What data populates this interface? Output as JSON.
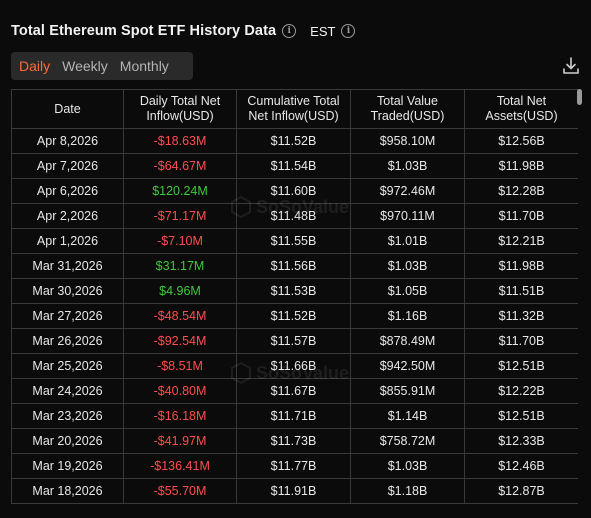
{
  "header": {
    "title": "Total Ethereum Spot ETF History Data",
    "timezone": "EST"
  },
  "tabs": [
    {
      "label": "Daily",
      "active": true
    },
    {
      "label": "Weekly",
      "active": false
    },
    {
      "label": "Monthly",
      "active": false
    }
  ],
  "watermark": "SoSoValue",
  "table": {
    "columns": [
      "Date",
      "Daily Total Net Inflow(USD)",
      "Cumulative Total Net Inflow(USD)",
      "Total Value Traded(USD)",
      "Total Net Assets(USD)"
    ],
    "rows": [
      {
        "date": "Apr 8,2026",
        "inflow": "-$18.63M",
        "cumulative": "$11.52B",
        "traded": "$958.10M",
        "assets": "$12.56B"
      },
      {
        "date": "Apr 7,2026",
        "inflow": "-$64.67M",
        "cumulative": "$11.54B",
        "traded": "$1.03B",
        "assets": "$11.98B"
      },
      {
        "date": "Apr 6,2026",
        "inflow": "$120.24M",
        "cumulative": "$11.60B",
        "traded": "$972.46M",
        "assets": "$12.28B"
      },
      {
        "date": "Apr 2,2026",
        "inflow": "-$71.17M",
        "cumulative": "$11.48B",
        "traded": "$970.11M",
        "assets": "$11.70B"
      },
      {
        "date": "Apr 1,2026",
        "inflow": "-$7.10M",
        "cumulative": "$11.55B",
        "traded": "$1.01B",
        "assets": "$12.21B"
      },
      {
        "date": "Mar 31,2026",
        "inflow": "$31.17M",
        "cumulative": "$11.56B",
        "traded": "$1.03B",
        "assets": "$11.98B"
      },
      {
        "date": "Mar 30,2026",
        "inflow": "$4.96M",
        "cumulative": "$11.53B",
        "traded": "$1.05B",
        "assets": "$11.51B"
      },
      {
        "date": "Mar 27,2026",
        "inflow": "-$48.54M",
        "cumulative": "$11.52B",
        "traded": "$1.16B",
        "assets": "$11.32B"
      },
      {
        "date": "Mar 26,2026",
        "inflow": "-$92.54M",
        "cumulative": "$11.57B",
        "traded": "$878.49M",
        "assets": "$11.70B"
      },
      {
        "date": "Mar 25,2026",
        "inflow": "-$8.51M",
        "cumulative": "$11.66B",
        "traded": "$942.50M",
        "assets": "$12.51B"
      },
      {
        "date": "Mar 24,2026",
        "inflow": "-$40.80M",
        "cumulative": "$11.67B",
        "traded": "$855.91M",
        "assets": "$12.22B"
      },
      {
        "date": "Mar 23,2026",
        "inflow": "-$16.18M",
        "cumulative": "$11.71B",
        "traded": "$1.14B",
        "assets": "$12.51B"
      },
      {
        "date": "Mar 20,2026",
        "inflow": "-$41.97M",
        "cumulative": "$11.73B",
        "traded": "$758.72M",
        "assets": "$12.33B"
      },
      {
        "date": "Mar 19,2026",
        "inflow": "-$136.41M",
        "cumulative": "$11.77B",
        "traded": "$1.03B",
        "assets": "$12.46B"
      },
      {
        "date": "Mar 18,2026",
        "inflow": "-$55.70M",
        "cumulative": "$11.91B",
        "traded": "$1.18B",
        "assets": "$12.87B"
      }
    ]
  },
  "colors": {
    "accent": "#ff6a3a",
    "negative": "#ff4d4d",
    "positive": "#3ec93e",
    "background": "#0b0b0b"
  },
  "icons": {
    "title_info": "info-icon",
    "timezone_info": "info-icon",
    "download": "download-icon"
  }
}
